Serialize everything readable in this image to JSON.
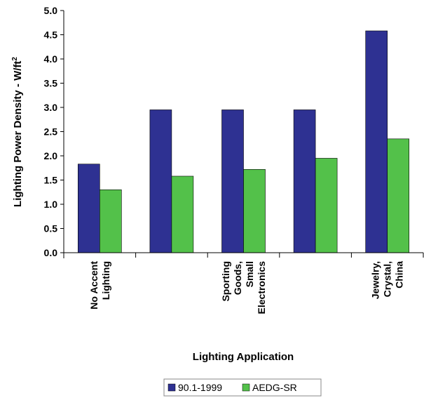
{
  "chart_data": {
    "type": "bar",
    "categories": [
      [
        "No Accent",
        "Lighting"
      ],
      [],
      [
        "Sporting",
        "Goods,",
        "Small",
        "Electronics"
      ],
      [],
      [
        "Jewelry,",
        "Crystal,",
        "China"
      ]
    ],
    "series": [
      {
        "name": "90.1-1999",
        "color": "#2E3192",
        "values": [
          1.83,
          2.95,
          2.95,
          2.95,
          4.58
        ]
      },
      {
        "name": "AEDG-SR",
        "color": "#53C14A",
        "values": [
          1.3,
          1.58,
          1.72,
          1.95,
          2.35
        ]
      }
    ],
    "xlabel": "Lighting Application",
    "ylabel": "Lighting Power Density - W/ft",
    "ylabel_sup": "2",
    "ylim": [
      0,
      5.0
    ],
    "yticks": [
      "0.0",
      "0.5",
      "1.0",
      "1.5",
      "2.0",
      "2.5",
      "3.0",
      "3.5",
      "4.0",
      "4.5",
      "5.0"
    ],
    "grid": false,
    "legend": "bottom"
  }
}
